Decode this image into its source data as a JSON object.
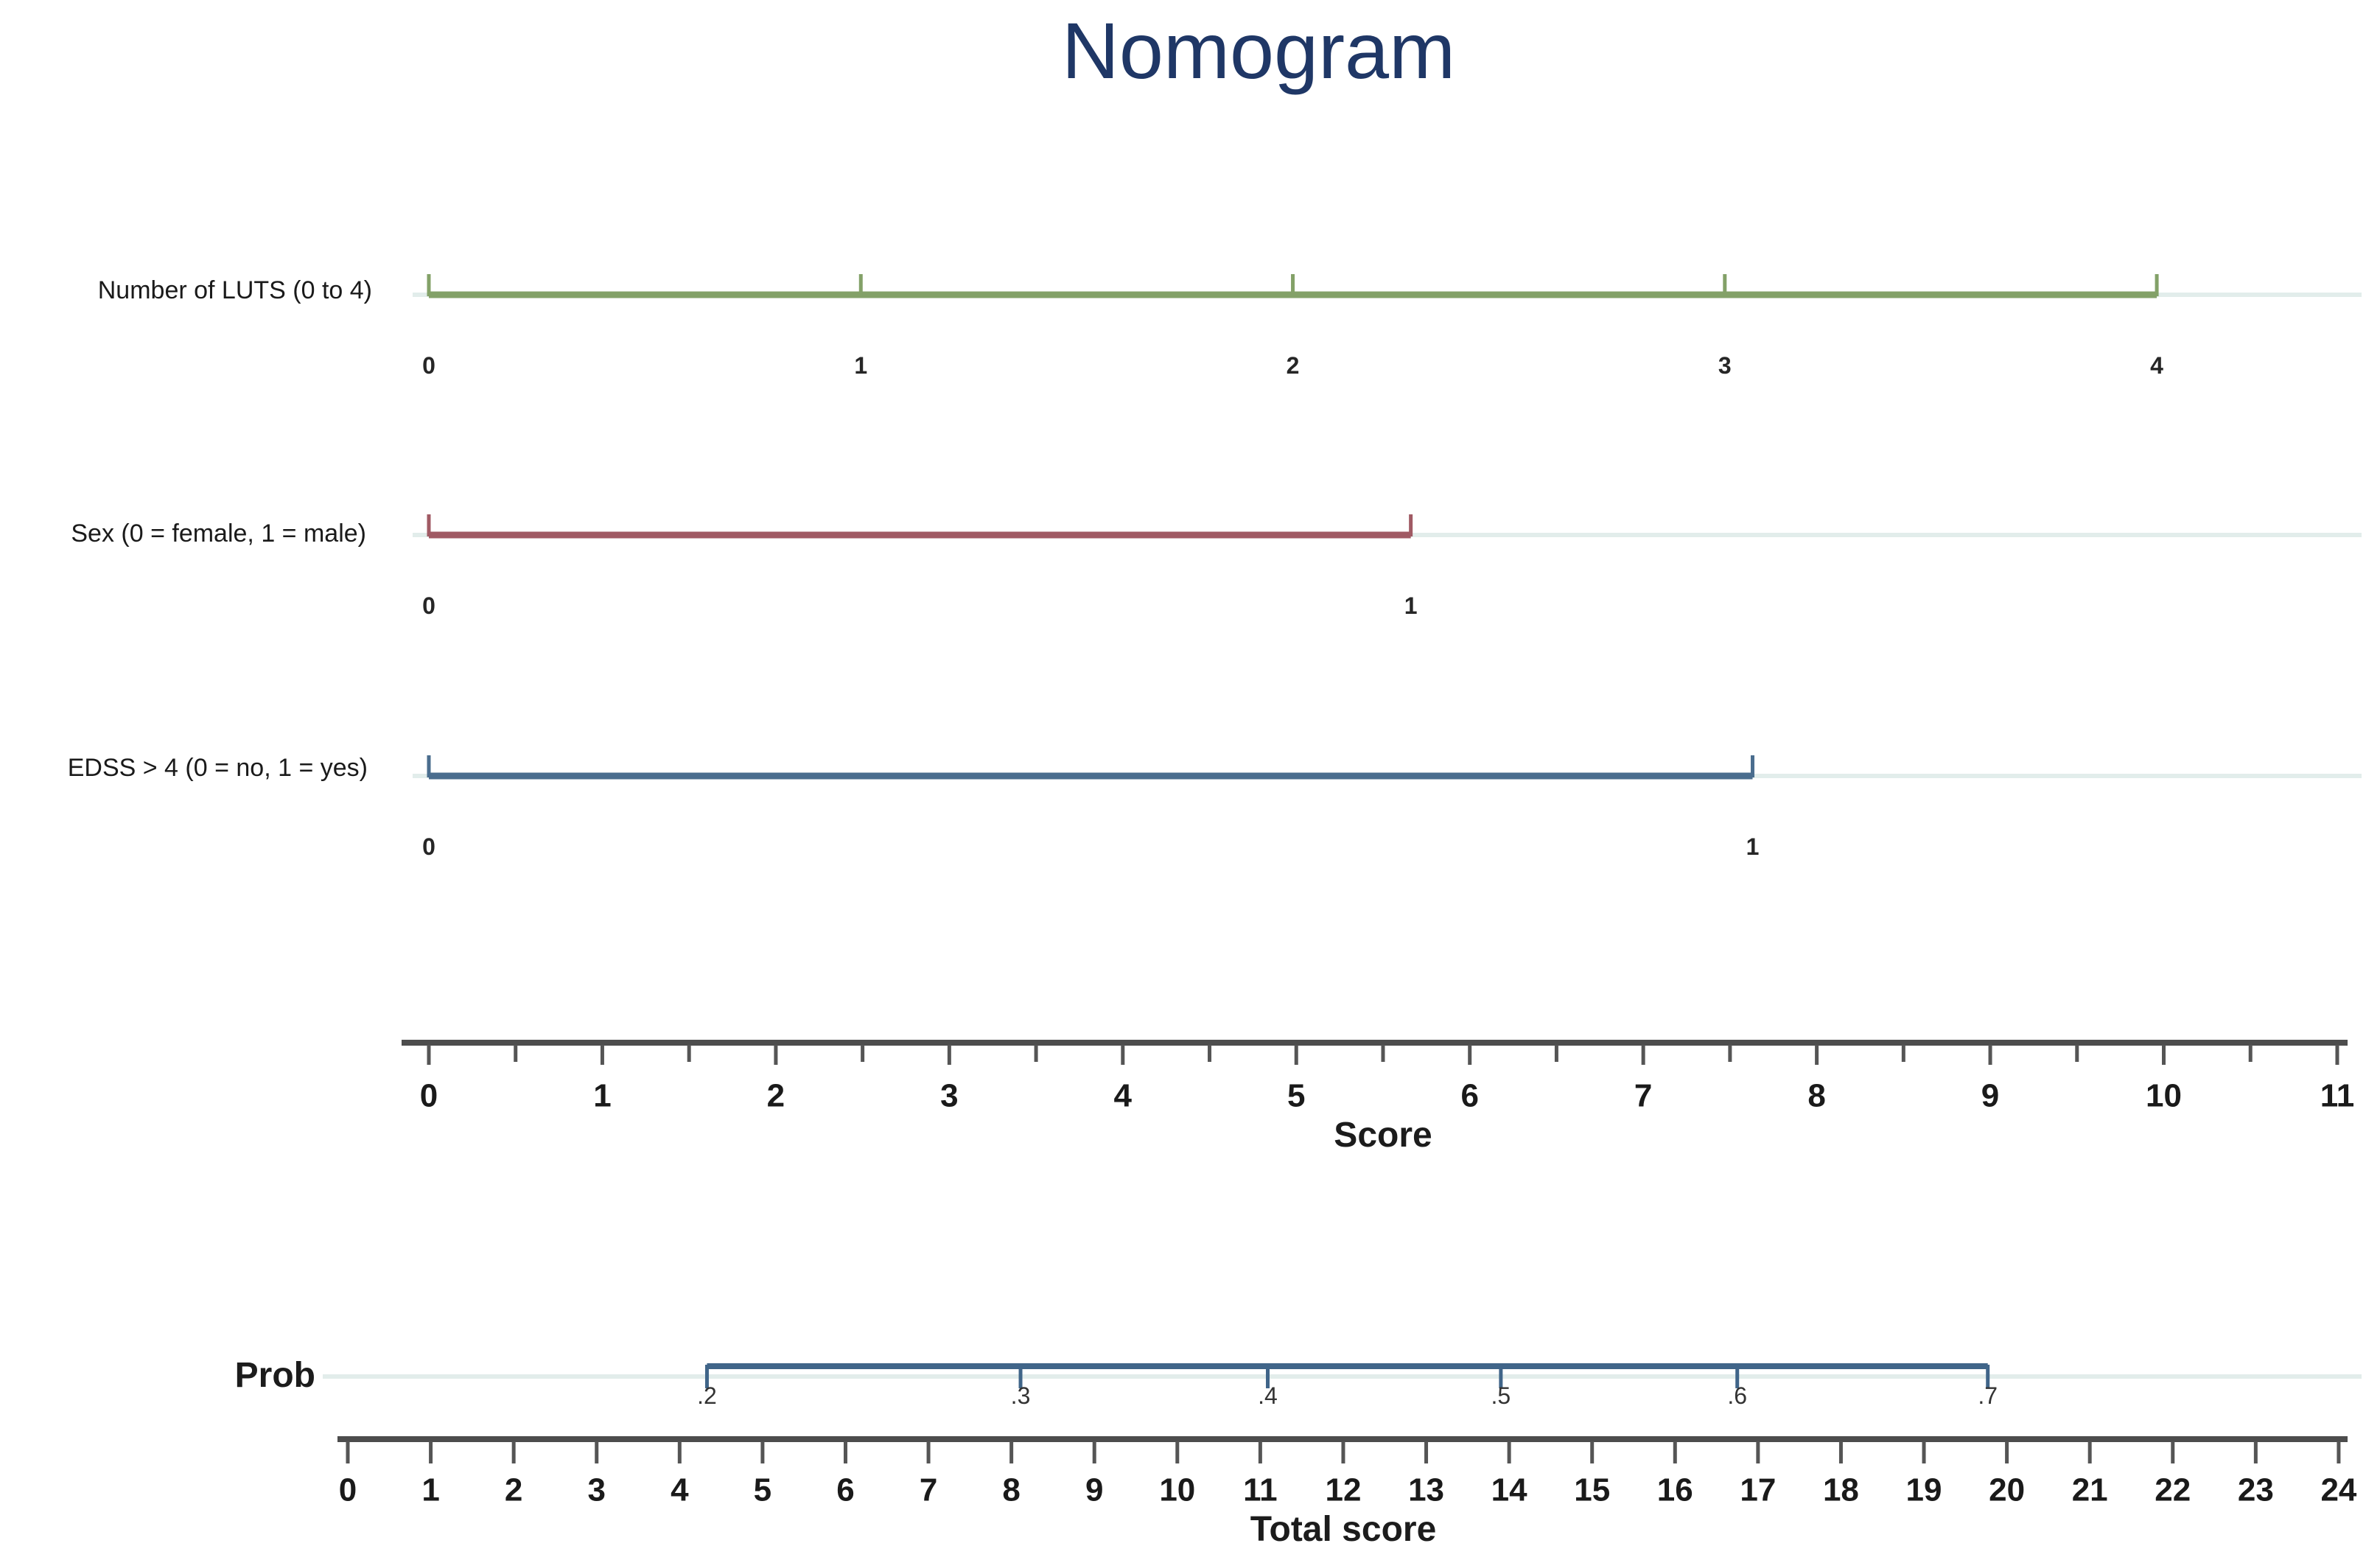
{
  "title": "Nomogram",
  "chart_data": {
    "type": "nomogram",
    "title": "Nomogram",
    "background": "#ffffff",
    "legend": "none",
    "grid": "off",
    "colors": {
      "title": "#1f3766",
      "axis_line": "#4d4d4d",
      "axis_tick": "#555555",
      "tick_label": "#1a1a1a",
      "row_label": "#1a1a1a",
      "value_label": "#262626",
      "faint_rule": "#e2edeb",
      "luts": "#83a168",
      "sex": "#a05a64",
      "edss": "#4a6d8e",
      "prob": "#406589"
    },
    "rows": [
      {
        "id": "luts",
        "label": "Number of LUTS (0 to 4)",
        "color": "#83a168",
        "units": "score",
        "ticks": [
          {
            "label": "0",
            "score": 0
          },
          {
            "label": "1",
            "score": 2.49
          },
          {
            "label": "2",
            "score": 4.98
          },
          {
            "label": "3",
            "score": 7.47
          },
          {
            "label": "4",
            "score": 9.96
          }
        ]
      },
      {
        "id": "sex",
        "label": "Sex (0 = female, 1 = male)",
        "color": "#a05a64",
        "units": "score",
        "ticks": [
          {
            "label": "0",
            "score": 0
          },
          {
            "label": "1",
            "score": 5.66
          }
        ]
      },
      {
        "id": "edss",
        "label": "EDSS > 4 (0 = no, 1 = yes)",
        "color": "#4a6d8e",
        "units": "score",
        "ticks": [
          {
            "label": "0",
            "score": 0
          },
          {
            "label": "1",
            "score": 7.63
          }
        ]
      }
    ],
    "score_axis": {
      "label": "Score",
      "min": 0,
      "max": 11,
      "major_step": 1,
      "minor_step": 0.5,
      "tick_labels": [
        "0",
        "1",
        "2",
        "3",
        "4",
        "5",
        "6",
        "7",
        "8",
        "9",
        "10",
        "11"
      ]
    },
    "prob_axis": {
      "label": "Prob",
      "color": "#406589",
      "units": "total_score",
      "ticks": [
        {
          "label": ".2",
          "total": 4.33
        },
        {
          "label": ".3",
          "total": 8.11
        },
        {
          "label": ".4",
          "total": 11.09
        },
        {
          "label": ".5",
          "total": 13.9
        },
        {
          "label": ".6",
          "total": 16.75
        },
        {
          "label": ".7",
          "total": 19.77
        }
      ]
    },
    "total_axis": {
      "label": "Total score",
      "min": 0,
      "max": 24,
      "step": 1,
      "tick_labels": [
        "0",
        "1",
        "2",
        "3",
        "4",
        "5",
        "6",
        "7",
        "8",
        "9",
        "10",
        "11",
        "12",
        "13",
        "14",
        "15",
        "16",
        "17",
        "18",
        "19",
        "20",
        "21",
        "22",
        "23",
        "24"
      ]
    }
  }
}
